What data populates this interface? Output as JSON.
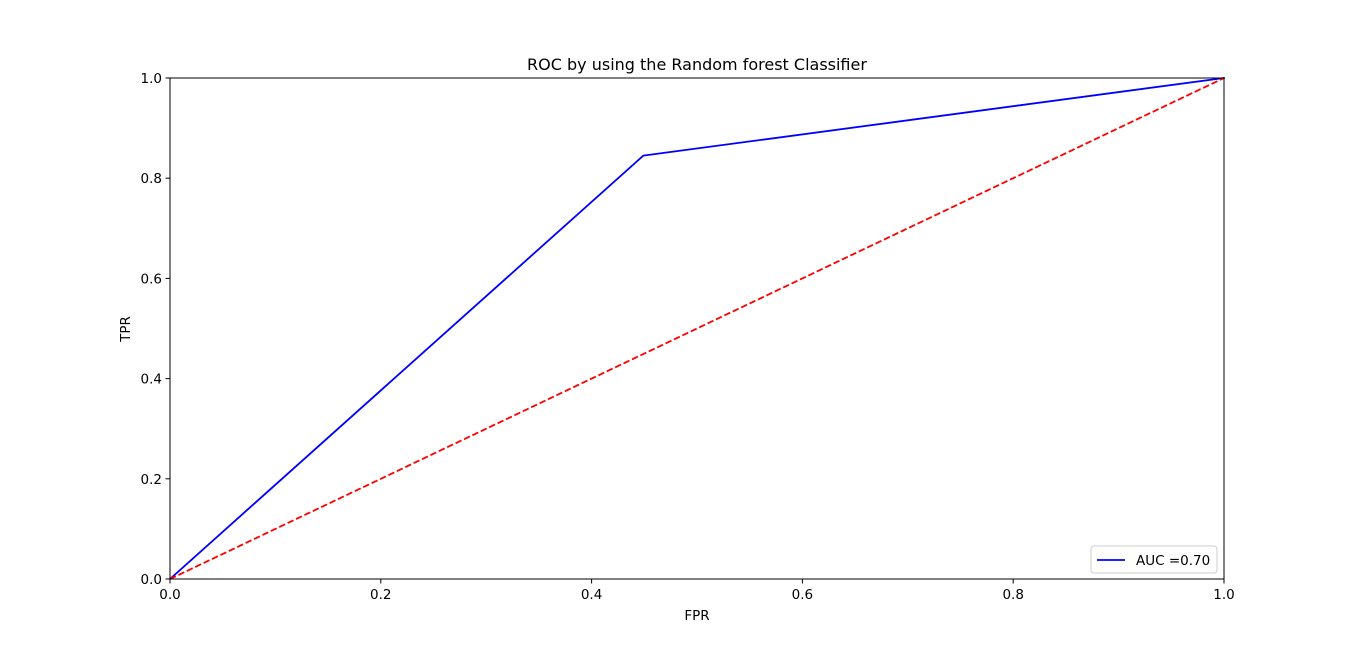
{
  "chart_data": {
    "type": "line",
    "title": "ROC by using the Random forest Classifier",
    "xlabel": "FPR",
    "ylabel": "TPR",
    "xlim": [
      0,
      1
    ],
    "ylim": [
      0,
      1
    ],
    "x_ticks": [
      0.0,
      0.2,
      0.4,
      0.6,
      0.8,
      1.0
    ],
    "y_ticks": [
      0.0,
      0.2,
      0.4,
      0.6,
      0.8,
      1.0
    ],
    "x_tick_labels": [
      "0.0",
      "0.2",
      "0.4",
      "0.6",
      "0.8",
      "1.0"
    ],
    "y_tick_labels": [
      "0.0",
      "0.2",
      "0.4",
      "0.6",
      "0.8",
      "1.0"
    ],
    "grid": false,
    "legend_position": "lower-right",
    "series": [
      {
        "name": "AUC =0.70",
        "x": [
          0.0,
          0.449,
          1.0
        ],
        "y": [
          0.0,
          0.845,
          1.0
        ],
        "color": "#0000ff",
        "style": "solid",
        "in_legend": true
      },
      {
        "x": [
          0.0,
          1.0
        ],
        "y": [
          0.0,
          1.0
        ],
        "color": "#ff0000",
        "style": "dashed",
        "in_legend": false
      }
    ]
  }
}
